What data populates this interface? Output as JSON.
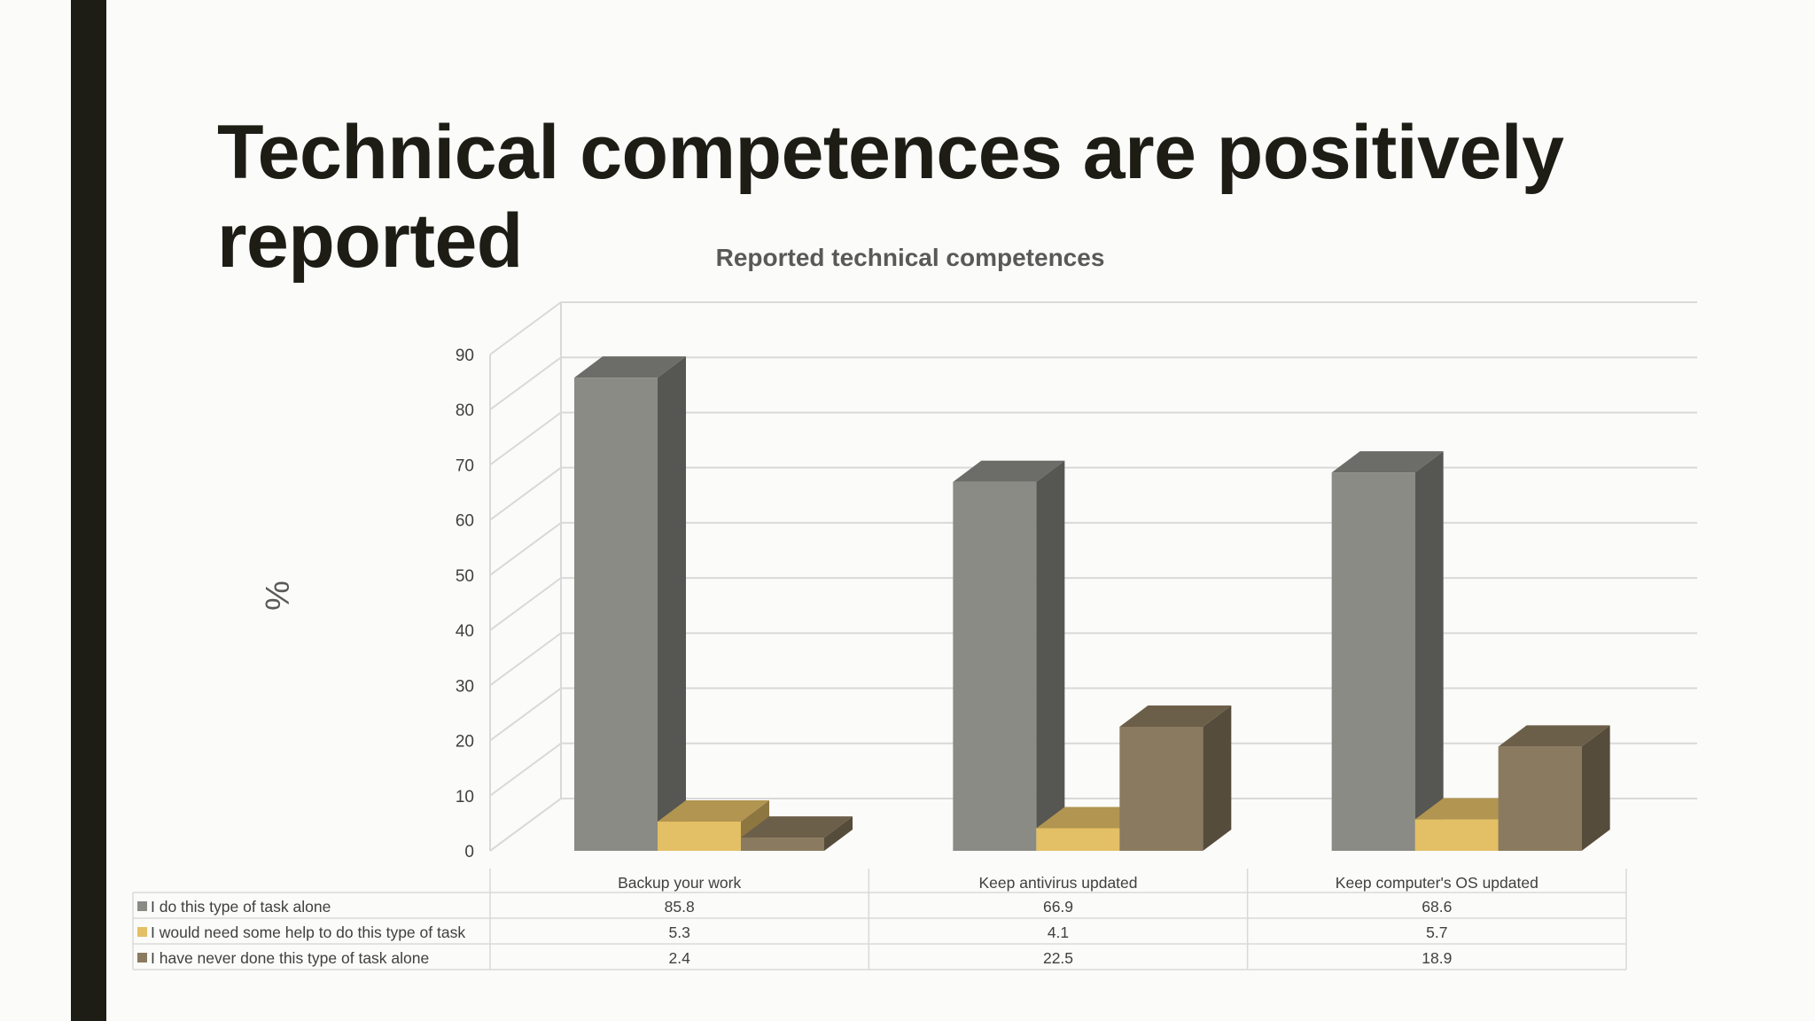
{
  "slide": {
    "title": "Technical competences are positively reported",
    "accent_bar_color": "#1d1d16"
  },
  "chart_data": {
    "type": "bar",
    "title": "Reported technical competences",
    "xlabel": "",
    "ylabel": "%",
    "ylim": [
      0,
      90
    ],
    "yticks": [
      0,
      10,
      20,
      30,
      40,
      50,
      60,
      70,
      80,
      90
    ],
    "categories": [
      "Backup your work",
      "Keep antivirus updated",
      "Keep computer's OS updated"
    ],
    "series": [
      {
        "name": "I do this type of task alone",
        "values": [
          85.8,
          66.9,
          68.6
        ],
        "color": "#8a8b85"
      },
      {
        "name": "I would need some help to do this type of task",
        "values": [
          5.3,
          4.1,
          5.7
        ],
        "color": "#e3bf66"
      },
      {
        "name": "I have never done this type of task alone",
        "values": [
          2.4,
          22.5,
          18.9
        ],
        "color": "#8a7a5f"
      }
    ],
    "data_table": true,
    "grid": true
  }
}
